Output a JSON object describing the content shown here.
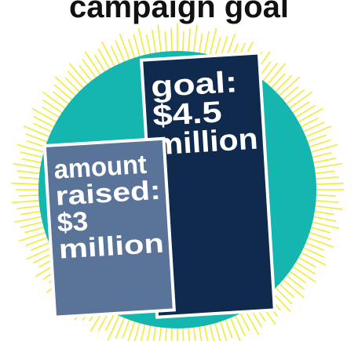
{
  "header": {
    "title_fragment": "campaign goal"
  },
  "chart_data": {
    "type": "bar",
    "categories": [
      "amount raised",
      "goal"
    ],
    "values": [
      3,
      4.5
    ],
    "unit": "million",
    "bars": [
      {
        "label_lines": [
          "amount",
          "raised:",
          "$3",
          "million"
        ],
        "value": 3,
        "color": "#5a7399"
      },
      {
        "label_lines": [
          "goal:",
          "$4.5",
          "million"
        ],
        "value": 4.5,
        "color": "#0f2a4d"
      }
    ],
    "colors": {
      "sunburst": "#f2ea3a",
      "circle": "#16b6b0",
      "outline": "#ffffff"
    }
  }
}
